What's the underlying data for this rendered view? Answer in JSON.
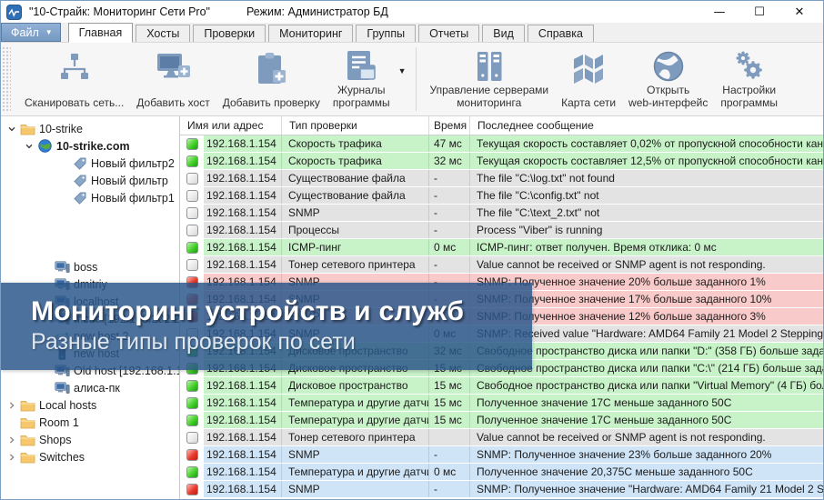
{
  "window": {
    "title": "\"10-Страйк: Мониторинг Сети Pro\"",
    "mode": "Режим: Администратор БД",
    "controls": {
      "minimize": "—",
      "maximize": "☐",
      "close": "✕"
    }
  },
  "menu": {
    "file_button": "Файл",
    "tabs": [
      {
        "label": "Главная",
        "active": true
      },
      {
        "label": "Хосты",
        "active": false
      },
      {
        "label": "Проверки",
        "active": false
      },
      {
        "label": "Мониторинг",
        "active": false
      },
      {
        "label": "Группы",
        "active": false
      },
      {
        "label": "Отчеты",
        "active": false
      },
      {
        "label": "Вид",
        "active": false
      },
      {
        "label": "Справка",
        "active": false
      }
    ]
  },
  "toolbar": {
    "items": [
      {
        "type": "button",
        "icon": "network-scan",
        "label": "Сканировать сеть..."
      },
      {
        "type": "button",
        "icon": "add-host",
        "label": "Добавить хост"
      },
      {
        "type": "button",
        "icon": "add-check",
        "label": "Добавить проверку"
      },
      {
        "type": "button",
        "icon": "logs",
        "label": "Журналы\nпрограммы"
      },
      {
        "type": "caret"
      },
      {
        "type": "separator"
      },
      {
        "type": "button",
        "icon": "servers",
        "label": "Управление серверами\nмониторинга"
      },
      {
        "type": "button",
        "icon": "map",
        "label": "Карта сети"
      },
      {
        "type": "button",
        "icon": "globe",
        "label": "Открыть\nweb-интерфейс"
      },
      {
        "type": "button",
        "icon": "gears",
        "label": "Настройки\nпрограммы"
      }
    ]
  },
  "sidebar": {
    "items": [
      {
        "label": "10-strike",
        "icon": "folder",
        "depth": 0,
        "expander": "down"
      },
      {
        "label": "10-strike.com",
        "icon": "globe-node",
        "depth": 1,
        "expander": "down",
        "bold": true
      },
      {
        "label": "Новый фильтр2",
        "icon": "tag",
        "depth": 3
      },
      {
        "label": "Новый фильтр",
        "icon": "tag",
        "depth": 3
      },
      {
        "label": "Новый фильтр1",
        "icon": "tag",
        "depth": 3
      },
      {
        "spacer": true
      },
      {
        "spacer": true
      },
      {
        "spacer": true
      },
      {
        "label": "boss",
        "icon": "computer",
        "depth": 2
      },
      {
        "label": "dmitriy",
        "icon": "computer",
        "depth": 2
      },
      {
        "label": "localhost",
        "icon": "computer",
        "depth": 2
      },
      {
        "label": "mcbc [192.168.202.2]",
        "icon": "computer",
        "depth": 2
      },
      {
        "label": "new host 2",
        "icon": "device",
        "depth": 2
      },
      {
        "label": "new host",
        "icon": "server",
        "depth": 2
      },
      {
        "label": "Old host [192.168.1.153]",
        "icon": "computer",
        "depth": 2
      },
      {
        "label": "алиса-пк",
        "icon": "computer",
        "depth": 2
      },
      {
        "label": "Local hosts",
        "icon": "folder",
        "depth": 0,
        "expander": "right"
      },
      {
        "label": "Room 1",
        "icon": "folder",
        "depth": 0
      },
      {
        "label": "Shops",
        "icon": "folder",
        "depth": 0,
        "expander": "right"
      },
      {
        "label": "Switches",
        "icon": "folder",
        "depth": 0,
        "expander": "right"
      }
    ]
  },
  "table": {
    "columns": [
      "Имя или адрес",
      "Тип проверки",
      "Время",
      "Последнее сообщение"
    ],
    "rows": [
      {
        "status": "green",
        "name": "192.168.1.154",
        "type": "Скорость трафика",
        "time": "47 мс",
        "message": "Текущая скорость составляет 0,02% от пропускной способности кана",
        "tone": "green"
      },
      {
        "status": "green",
        "name": "192.168.1.154",
        "type": "Скорость трафика",
        "time": "32 мс",
        "message": "Текущая скорость составляет 12,5% от пропускной способности кана",
        "tone": "green"
      },
      {
        "status": "gray",
        "name": "192.168.1.154",
        "type": "Существование файла",
        "time": "-",
        "message": "The file \"C:\\log.txt\" not found",
        "tone": "gray"
      },
      {
        "status": "gray",
        "name": "192.168.1.154",
        "type": "Существование файла",
        "time": "-",
        "message": "The file \"C:\\config.txt\" not",
        "tone": "gray"
      },
      {
        "status": "gray",
        "name": "192.168.1.154",
        "type": "SNMP",
        "time": "-",
        "message": "The file \"C:\\text_2.txt\" not",
        "tone": "gray"
      },
      {
        "status": "gray",
        "name": "192.168.1.154",
        "type": "Процессы",
        "time": "-",
        "message": "Process \"Viber\" is running",
        "tone": "gray"
      },
      {
        "status": "green",
        "name": "192.168.1.154",
        "type": "ICMP-пинг",
        "time": "0 мс",
        "message": "ICMP-пинг: ответ получен. Время отклика: 0 мс",
        "tone": "green"
      },
      {
        "status": "gray",
        "name": "192.168.1.154",
        "type": "Тонер сетевого принтера",
        "time": "-",
        "message": "Value cannot be received or SNMP agent is not responding.",
        "tone": "gray"
      },
      {
        "status": "red",
        "name": "192.168.1.154",
        "type": "SNMP",
        "time": "-",
        "message": "SNMP: Полученное значение 20% больше заданного 1%",
        "tone": "red"
      },
      {
        "status": "red",
        "name": "192.168.1.154",
        "type": "SNMP",
        "time": "-",
        "message": "SNMP: Полученное значение 17% больше заданного 10%",
        "tone": "red"
      },
      {
        "status": "red",
        "name": "192.168.1.154",
        "type": "SNMP",
        "time": "-",
        "message": "SNMP: Полученное значение 12% больше заданного 3%",
        "tone": "red"
      },
      {
        "status": "gray",
        "name": "192.168.1.154",
        "type": "SNMP",
        "time": "0 мс",
        "message": "SNMP: Received value \"Hardware: AMD64 Family 21 Model 2 Stepping 0 .",
        "tone": "gray"
      },
      {
        "status": "green",
        "name": "192.168.1.154",
        "type": "Дисковое пространство",
        "time": "32 мс",
        "message": "Свободное пространство диска или папки \"D:\" (358 ГБ) больше задан.",
        "tone": "green"
      },
      {
        "status": "green",
        "name": "192.168.1.154",
        "type": "Дисковое пространство",
        "time": "15 мс",
        "message": "Свободное пространство диска или папки \"C:\\\" (214 ГБ) больше зада.",
        "tone": "green"
      },
      {
        "status": "green",
        "name": "192.168.1.154",
        "type": "Дисковое пространство",
        "time": "15 мс",
        "message": "Свободное пространство диска или папки \"Virtual Memory\" (4 ГБ) бол",
        "tone": "green"
      },
      {
        "status": "green",
        "name": "192.168.1.154",
        "type": "Температура и другие датчи",
        "time": "15 мс",
        "message": "Полученное значение 17C меньше заданного 50C",
        "tone": "green"
      },
      {
        "status": "green",
        "name": "192.168.1.154",
        "type": "Температура и другие датчи",
        "time": "15 мс",
        "message": "Полученное значение 17C меньше заданного 50C",
        "tone": "green"
      },
      {
        "status": "gray",
        "name": "192.168.1.154",
        "type": "Тонер сетевого принтера",
        "time": "",
        "message": "Value cannot be received or SNMP agent is not responding.",
        "tone": "gray"
      },
      {
        "status": "red",
        "name": "192.168.1.154",
        "type": "SNMP",
        "time": "-",
        "message": "SNMP: Полученное значение 23% больше заданного 20%",
        "tone": "blue"
      },
      {
        "status": "green",
        "name": "192.168.1.154",
        "type": "Температура и другие датчи",
        "time": "0 мс",
        "message": "Полученное значение 20,375C меньше заданного 50C",
        "tone": "blue"
      },
      {
        "status": "red",
        "name": "192.168.1.154",
        "type": "SNMP",
        "time": "-",
        "message": "SNMP: Полученное значение \"Hardware: AMD64 Family 21 Model 2 Ste",
        "tone": "blue"
      }
    ]
  },
  "banner": {
    "title": "Мониторинг устройств и служб",
    "subtitle": "Разные типы проверок по сети"
  },
  "colors": {
    "row_ok": "#c8f2c8",
    "row_alarm": "#f8caca",
    "row_pending": "#e3e3e3",
    "row_selected": "#cfe4f7",
    "banner_bg": "#2a5689",
    "toolbar_icon": "#7e9abd",
    "file_button": "#7d9fc9"
  }
}
